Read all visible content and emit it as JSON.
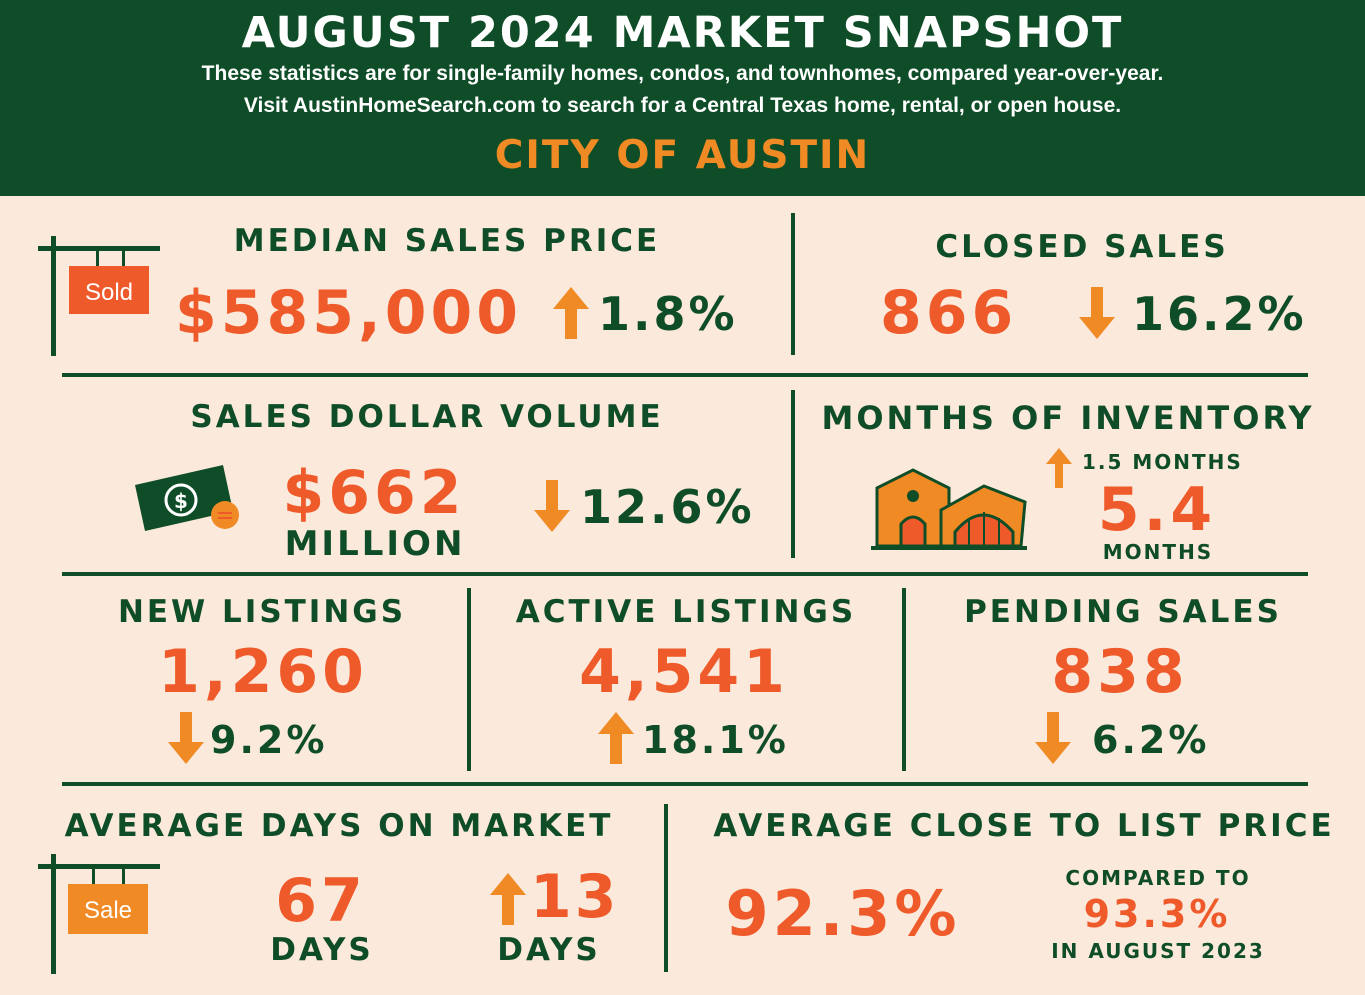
{
  "header": {
    "title": "AUGUST 2024 MARKET SNAPSHOT",
    "line1": "These statistics are for single-family homes, condos, and townhomes, compared year-over-year.",
    "line2": "Visit AustinHomeSearch.com to search for a Central Texas home, rental, or open house.",
    "city": "CITY OF AUSTIN"
  },
  "median": {
    "label": "MEDIAN SALES PRICE",
    "value": "$585,000",
    "change": "1.8%",
    "direction": "up",
    "sign_text": "Sold",
    "icon": "sold-sign-icon"
  },
  "closed": {
    "label": "CLOSED SALES",
    "value": "866",
    "change": "16.2%",
    "direction": "down"
  },
  "volume": {
    "label": "SALES DOLLAR VOLUME",
    "value": "$662",
    "unit": "MILLION",
    "change": "12.6%",
    "direction": "down",
    "icon": "money-icon"
  },
  "inventory": {
    "label": "MONTHS OF INVENTORY",
    "change": "1.5 MONTHS",
    "direction": "up",
    "value": "5.4",
    "unit": "MONTHS",
    "icon": "house-icon"
  },
  "new_listings": {
    "label": "NEW LISTINGS",
    "value": "1,260",
    "change": "9.2%",
    "direction": "down"
  },
  "active_listings": {
    "label": "ACTIVE LISTINGS",
    "value": "4,541",
    "change": "18.1%",
    "direction": "up"
  },
  "pending": {
    "label": "PENDING SALES",
    "value": "838",
    "change": "6.2%",
    "direction": "down"
  },
  "dom": {
    "label": "AVERAGE DAYS ON MARKET",
    "value": "67",
    "unit": "DAYS",
    "change": "13",
    "change_unit": "DAYS",
    "direction": "up",
    "sign_text": "Sale",
    "icon": "sale-sign-icon"
  },
  "close_to_list": {
    "label": "AVERAGE CLOSE TO LIST PRICE",
    "value": "92.3%",
    "compared_label": "COMPARED TO",
    "compared_value": "93.3%",
    "compared_period": "IN AUGUST 2023"
  },
  "colors": {
    "green": "#0e4d27",
    "orange_red": "#ef5a2a",
    "orange": "#f08a24",
    "background": "#fbe9dc"
  }
}
